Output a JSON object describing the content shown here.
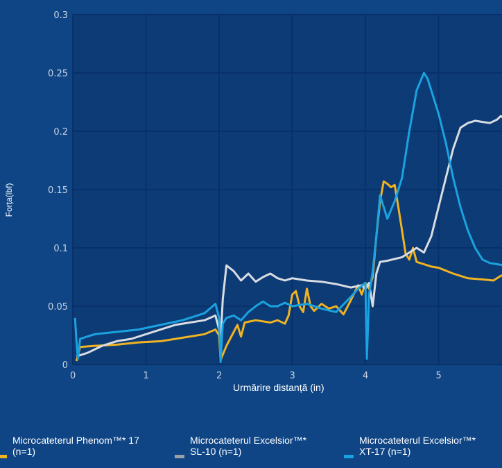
{
  "chart_data": {
    "type": "line",
    "xlabel": "Urmărire distanță (in)",
    "ylabel": "Forța(lbf)",
    "xlim": [
      0,
      5.9
    ],
    "ylim": [
      0,
      0.3
    ],
    "x_ticks": [
      "0",
      "1",
      "2",
      "3",
      "4",
      "5"
    ],
    "y_ticks": [
      "0",
      "0.05",
      "0.1",
      "0.15",
      "0.2",
      "0.25",
      "0.3"
    ],
    "grid": true,
    "legend_position": "bottom",
    "series": [
      {
        "name": "Microcateterul Phenom™* 17\n(n=1)",
        "color": "#f0b323",
        "points": [
          [
            0.05,
            0.003
          ],
          [
            0.1,
            0.015
          ],
          [
            0.3,
            0.016
          ],
          [
            0.6,
            0.017
          ],
          [
            0.9,
            0.019
          ],
          [
            1.2,
            0.02
          ],
          [
            1.5,
            0.023
          ],
          [
            1.8,
            0.026
          ],
          [
            1.95,
            0.03
          ],
          [
            2.0,
            0.025
          ],
          [
            2.02,
            0.004
          ],
          [
            2.1,
            0.016
          ],
          [
            2.2,
            0.028
          ],
          [
            2.25,
            0.034
          ],
          [
            2.3,
            0.024
          ],
          [
            2.35,
            0.036
          ],
          [
            2.5,
            0.038
          ],
          [
            2.7,
            0.036
          ],
          [
            2.8,
            0.038
          ],
          [
            2.9,
            0.035
          ],
          [
            2.95,
            0.042
          ],
          [
            3.0,
            0.06
          ],
          [
            3.05,
            0.063
          ],
          [
            3.1,
            0.05
          ],
          [
            3.15,
            0.045
          ],
          [
            3.2,
            0.065
          ],
          [
            3.25,
            0.05
          ],
          [
            3.3,
            0.046
          ],
          [
            3.4,
            0.052
          ],
          [
            3.5,
            0.048
          ],
          [
            3.6,
            0.05
          ],
          [
            3.7,
            0.043
          ],
          [
            3.8,
            0.055
          ],
          [
            3.9,
            0.068
          ],
          [
            3.95,
            0.06
          ],
          [
            4.0,
            0.07
          ],
          [
            4.05,
            0.065
          ],
          [
            4.1,
            0.075
          ],
          [
            4.15,
            0.11
          ],
          [
            4.2,
            0.14
          ],
          [
            4.25,
            0.157
          ],
          [
            4.3,
            0.155
          ],
          [
            4.35,
            0.152
          ],
          [
            4.4,
            0.154
          ],
          [
            4.45,
            0.135
          ],
          [
            4.5,
            0.115
          ],
          [
            4.55,
            0.095
          ],
          [
            4.6,
            0.09
          ],
          [
            4.65,
            0.1
          ],
          [
            4.7,
            0.088
          ],
          [
            4.8,
            0.086
          ],
          [
            4.9,
            0.084
          ],
          [
            5.0,
            0.083
          ],
          [
            5.2,
            0.078
          ],
          [
            5.4,
            0.074
          ],
          [
            5.6,
            0.073
          ],
          [
            5.75,
            0.072
          ],
          [
            5.85,
            0.076
          ],
          [
            5.9,
            0.077
          ]
        ]
      },
      {
        "name": "Microcateterul Excelsior™*\nSL-10  (n=1)",
        "color": "#d9dde3",
        "points": [
          [
            0.05,
            0.007
          ],
          [
            0.2,
            0.01
          ],
          [
            0.4,
            0.016
          ],
          [
            0.6,
            0.02
          ],
          [
            0.8,
            0.022
          ],
          [
            1.0,
            0.026
          ],
          [
            1.2,
            0.03
          ],
          [
            1.4,
            0.034
          ],
          [
            1.6,
            0.036
          ],
          [
            1.8,
            0.038
          ],
          [
            1.95,
            0.042
          ],
          [
            2.0,
            0.03
          ],
          [
            2.02,
            0.02
          ],
          [
            2.05,
            0.056
          ],
          [
            2.1,
            0.085
          ],
          [
            2.2,
            0.08
          ],
          [
            2.3,
            0.072
          ],
          [
            2.4,
            0.078
          ],
          [
            2.5,
            0.071
          ],
          [
            2.6,
            0.075
          ],
          [
            2.7,
            0.078
          ],
          [
            2.8,
            0.074
          ],
          [
            2.9,
            0.072
          ],
          [
            3.0,
            0.074
          ],
          [
            3.2,
            0.072
          ],
          [
            3.4,
            0.071
          ],
          [
            3.6,
            0.069
          ],
          [
            3.8,
            0.066
          ],
          [
            3.95,
            0.068
          ],
          [
            4.0,
            0.065
          ],
          [
            4.05,
            0.07
          ],
          [
            4.1,
            0.05
          ],
          [
            4.15,
            0.078
          ],
          [
            4.2,
            0.088
          ],
          [
            4.3,
            0.089
          ],
          [
            4.5,
            0.092
          ],
          [
            4.7,
            0.1
          ],
          [
            4.8,
            0.096
          ],
          [
            4.9,
            0.11
          ],
          [
            5.0,
            0.135
          ],
          [
            5.1,
            0.16
          ],
          [
            5.2,
            0.185
          ],
          [
            5.3,
            0.203
          ],
          [
            5.4,
            0.207
          ],
          [
            5.5,
            0.209
          ],
          [
            5.6,
            0.208
          ],
          [
            5.7,
            0.207
          ],
          [
            5.8,
            0.21
          ],
          [
            5.85,
            0.213
          ],
          [
            5.9,
            0.211
          ]
        ]
      },
      {
        "name": "Microcateterul Excelsior™*\nXT-17  (n=1)",
        "color": "#1aa3e0",
        "points": [
          [
            0.03,
            0.04
          ],
          [
            0.05,
            0.02
          ],
          [
            0.07,
            0.005
          ],
          [
            0.1,
            0.022
          ],
          [
            0.3,
            0.026
          ],
          [
            0.6,
            0.028
          ],
          [
            0.9,
            0.03
          ],
          [
            1.2,
            0.034
          ],
          [
            1.5,
            0.038
          ],
          [
            1.8,
            0.044
          ],
          [
            1.95,
            0.052
          ],
          [
            2.0,
            0.04
          ],
          [
            2.02,
            0.002
          ],
          [
            2.05,
            0.035
          ],
          [
            2.1,
            0.04
          ],
          [
            2.2,
            0.042
          ],
          [
            2.3,
            0.038
          ],
          [
            2.4,
            0.045
          ],
          [
            2.5,
            0.05
          ],
          [
            2.6,
            0.054
          ],
          [
            2.7,
            0.05
          ],
          [
            2.8,
            0.05
          ],
          [
            2.9,
            0.053
          ],
          [
            3.0,
            0.05
          ],
          [
            3.2,
            0.052
          ],
          [
            3.4,
            0.048
          ],
          [
            3.6,
            0.045
          ],
          [
            3.8,
            0.058
          ],
          [
            3.9,
            0.065
          ],
          [
            4.0,
            0.07
          ],
          [
            4.02,
            0.005
          ],
          [
            4.05,
            0.06
          ],
          [
            4.1,
            0.08
          ],
          [
            4.15,
            0.11
          ],
          [
            4.2,
            0.145
          ],
          [
            4.25,
            0.135
          ],
          [
            4.3,
            0.125
          ],
          [
            4.4,
            0.14
          ],
          [
            4.5,
            0.16
          ],
          [
            4.6,
            0.2
          ],
          [
            4.7,
            0.235
          ],
          [
            4.8,
            0.25
          ],
          [
            4.85,
            0.245
          ],
          [
            4.9,
            0.235
          ],
          [
            5.0,
            0.215
          ],
          [
            5.1,
            0.19
          ],
          [
            5.2,
            0.16
          ],
          [
            5.3,
            0.135
          ],
          [
            5.4,
            0.115
          ],
          [
            5.5,
            0.1
          ],
          [
            5.6,
            0.09
          ],
          [
            5.7,
            0.087
          ],
          [
            5.8,
            0.086
          ],
          [
            5.9,
            0.085
          ]
        ]
      }
    ]
  }
}
